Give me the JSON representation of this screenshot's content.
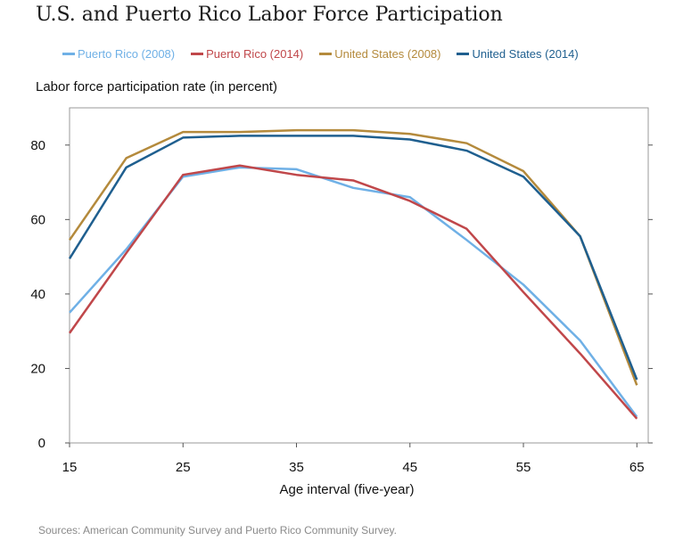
{
  "chart_data": {
    "type": "line",
    "title": "U.S. and Puerto Rico Labor Force Participation",
    "ylabel": "Labor force participation rate (in percent)",
    "xlabel": "Age interval (five-year)",
    "x": [
      15,
      20,
      25,
      30,
      35,
      40,
      45,
      50,
      55,
      60,
      65
    ],
    "xticks": [
      15,
      25,
      35,
      45,
      55,
      65
    ],
    "yticks": [
      0,
      20,
      40,
      60,
      80
    ],
    "xlim": [
      15,
      66
    ],
    "ylim": [
      0,
      90
    ],
    "grid": false,
    "legend_position": "top",
    "series": [
      {
        "name": "Puerto Rico (2008)",
        "color": "#6fb0e6",
        "values": [
          35,
          52,
          71.5,
          74,
          73.5,
          68.5,
          66,
          54.5,
          42.5,
          27.5,
          7
        ]
      },
      {
        "name": "Puerto Rico (2014)",
        "color": "#c0474a",
        "values": [
          29.5,
          51,
          72,
          74.5,
          72,
          70.5,
          65,
          57.5,
          40.5,
          24,
          6.5
        ]
      },
      {
        "name": "United States (2008)",
        "color": "#b48a3c",
        "values": [
          54.5,
          76.5,
          83.5,
          83.5,
          84,
          84,
          83,
          80.5,
          73,
          55.5,
          15.5
        ]
      },
      {
        "name": "United States (2014)",
        "color": "#1f5f8f",
        "values": [
          49.5,
          74,
          82,
          82.5,
          82.5,
          82.5,
          81.5,
          78.5,
          71.5,
          55.5,
          17
        ]
      }
    ],
    "source": "Sources: American Community Survey and Puerto Rico Community Survey."
  }
}
